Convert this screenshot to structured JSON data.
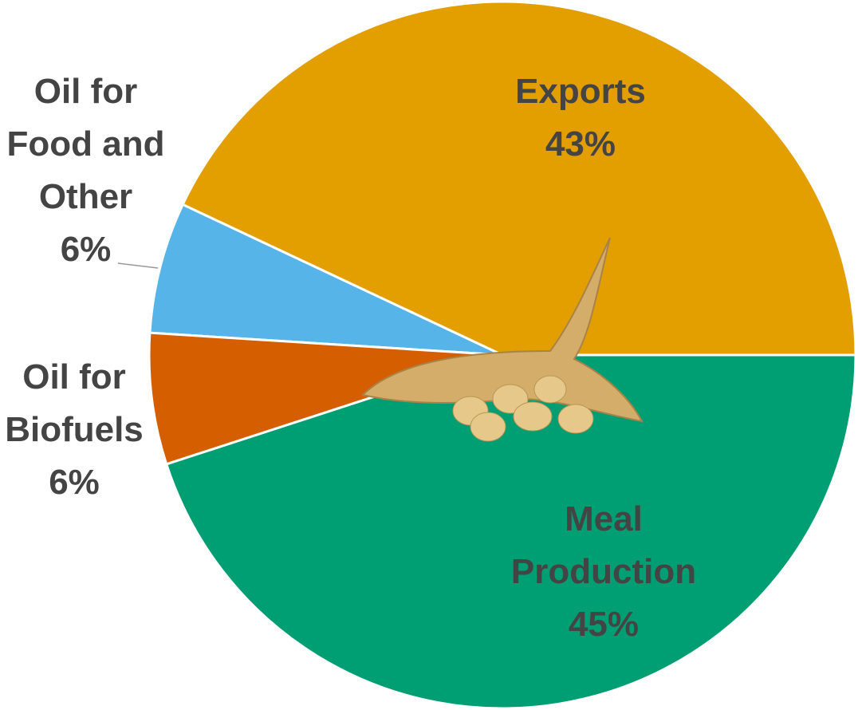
{
  "chart_data": {
    "type": "pie",
    "categories": [
      "Exports",
      "Oil for Food and Other",
      "Oil for Biofuels",
      "Meal Production"
    ],
    "values": [
      43,
      6,
      6,
      45
    ],
    "value_labels": [
      "43%",
      "6%",
      "6%",
      "45%"
    ],
    "colors": [
      "#e39e00",
      "#56b4e9",
      "#d55e00",
      "#009e73"
    ]
  }
}
